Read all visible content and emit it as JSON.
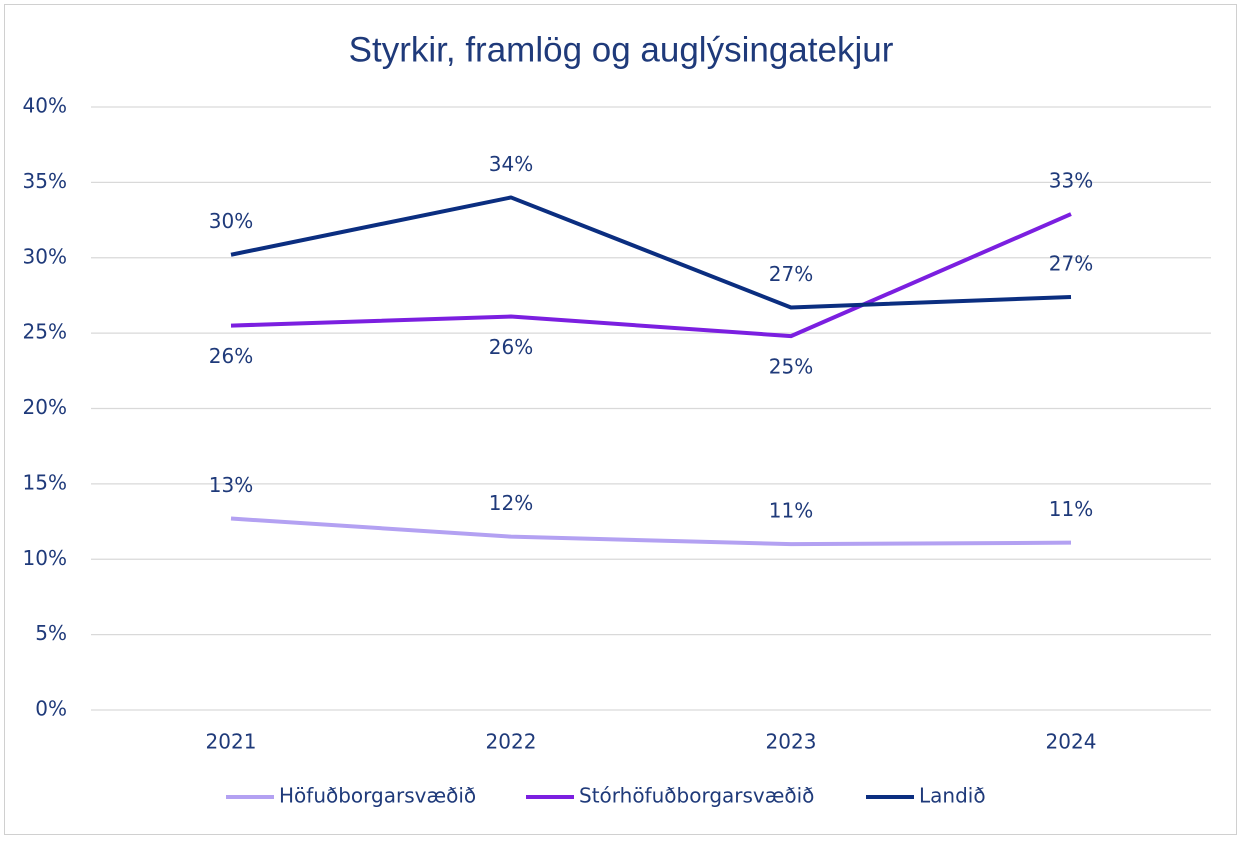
{
  "chart_data": {
    "type": "line",
    "title": "Styrkir, framlög og auglýsingatekjur",
    "categories": [
      "2021",
      "2022",
      "2023",
      "2024"
    ],
    "series": [
      {
        "name": "Höfuðborgarsvæðið",
        "color": "#b3a1f2",
        "values": [
          12.7,
          11.5,
          11.0,
          11.1
        ],
        "value_labels": [
          "13%",
          "12%",
          "11%",
          "11%"
        ]
      },
      {
        "name": "Stórhöfuðborgarsvæðið",
        "color": "#7b1fe0",
        "values": [
          25.5,
          26.1,
          24.8,
          32.9
        ],
        "value_labels": [
          "26%",
          "26%",
          "25%",
          "33%"
        ]
      },
      {
        "name": "Landið",
        "color": "#0b2e80",
        "values": [
          30.2,
          34.0,
          26.7,
          27.4
        ],
        "value_labels": [
          "30%",
          "34%",
          "27%",
          "27%"
        ]
      }
    ],
    "ylim": [
      0,
      40
    ],
    "yticks": [
      {
        "value": 0,
        "label": "0%"
      },
      {
        "value": 5,
        "label": "5%"
      },
      {
        "value": 10,
        "label": "10%"
      },
      {
        "value": 15,
        "label": "15%"
      },
      {
        "value": 20,
        "label": "20%"
      },
      {
        "value": 25,
        "label": "25%"
      },
      {
        "value": 30,
        "label": "30%"
      },
      {
        "value": 35,
        "label": "35%"
      },
      {
        "value": 40,
        "label": "40%"
      }
    ],
    "grid": true,
    "legend": "bottom"
  }
}
